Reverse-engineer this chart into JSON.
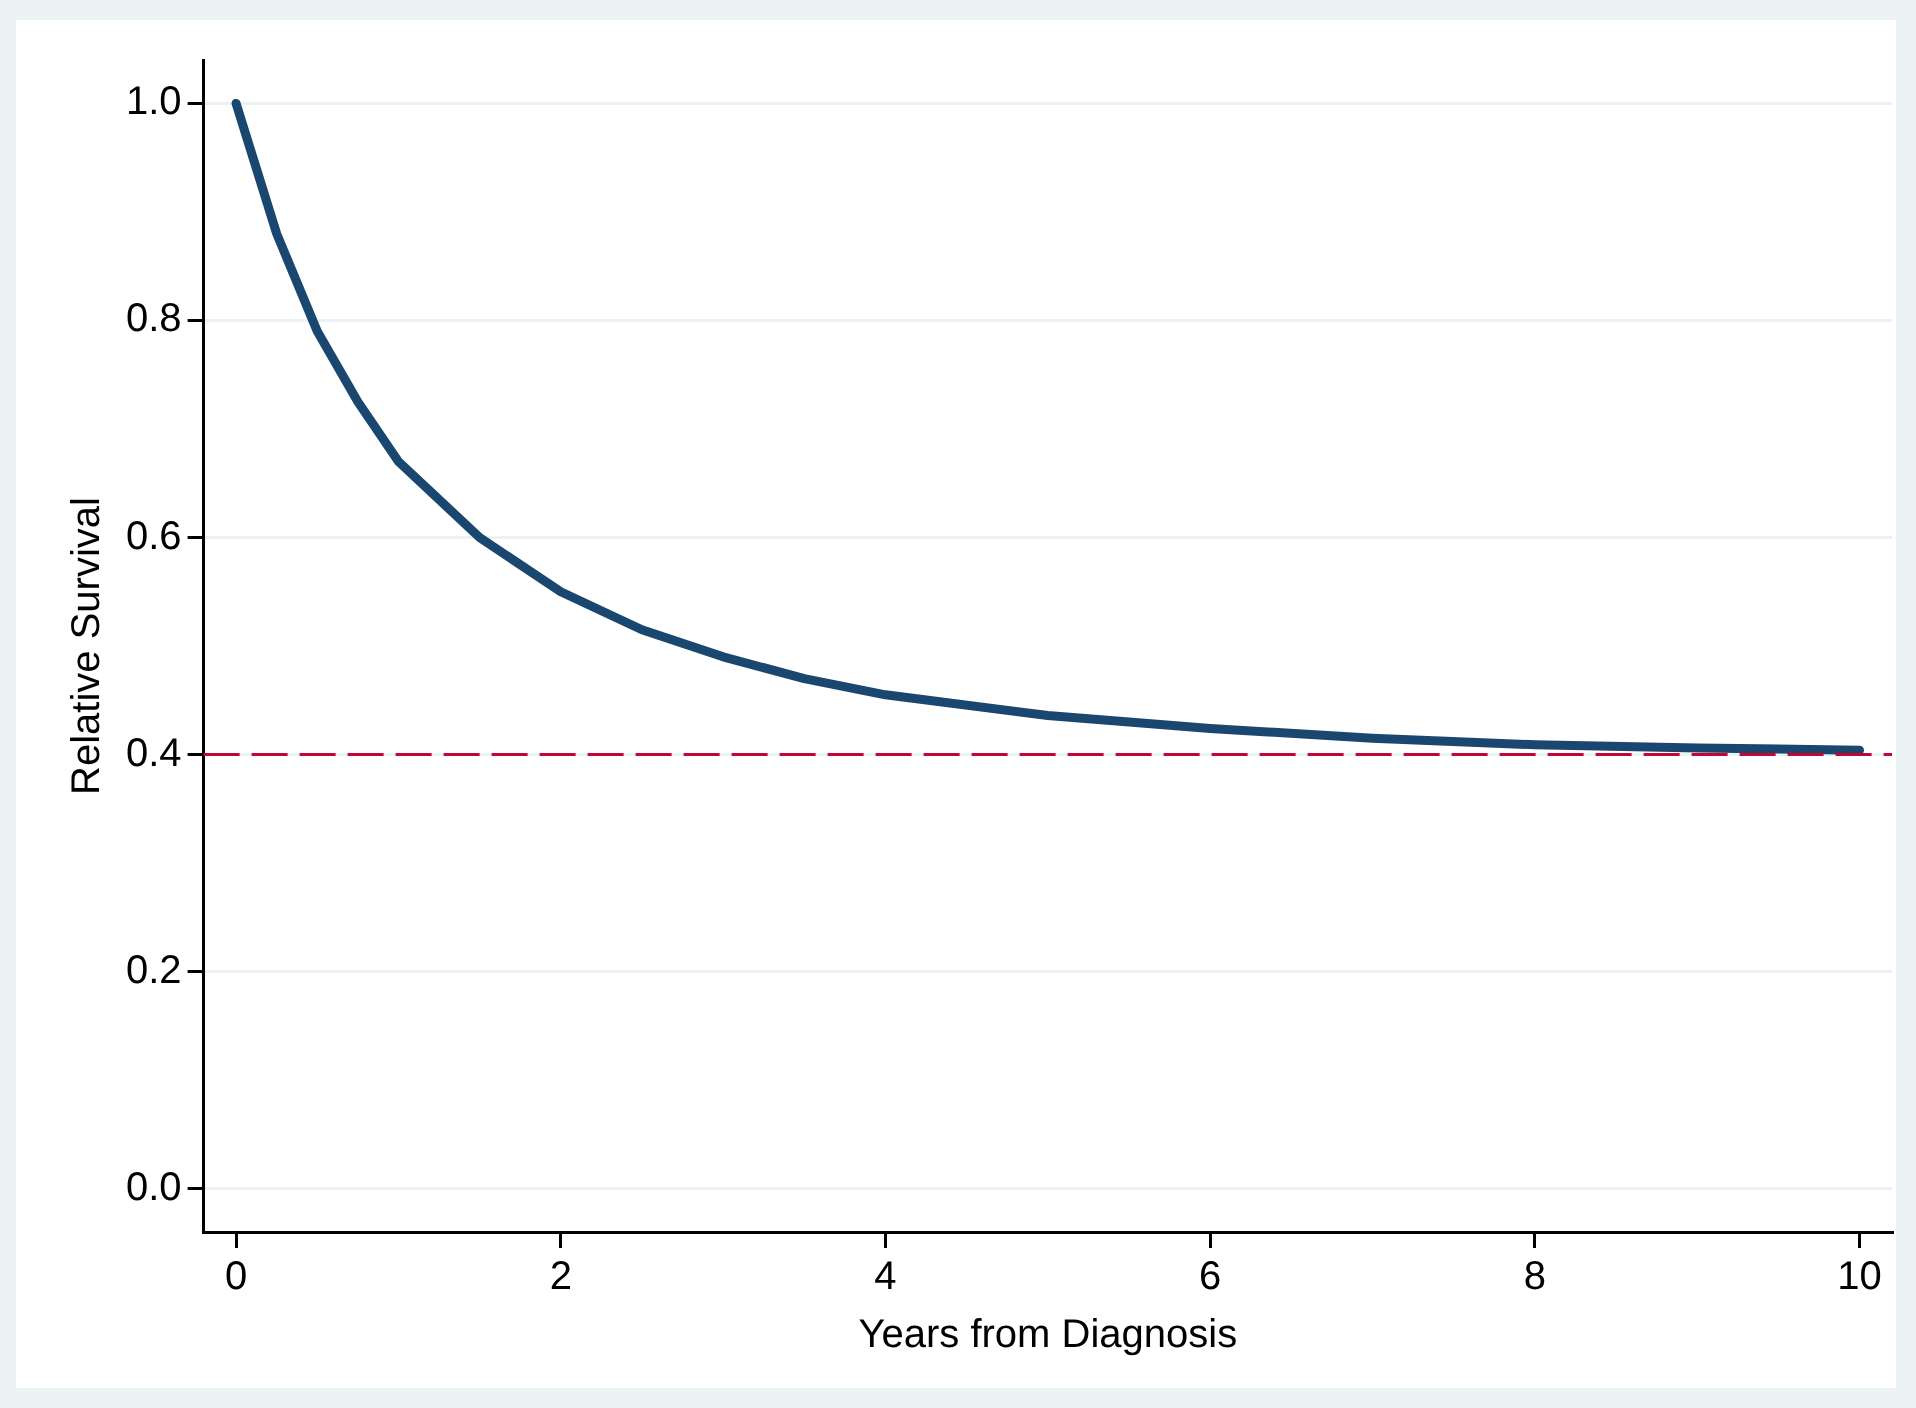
{
  "chart_data": {
    "type": "line",
    "xlabel": "Years from Diagnosis",
    "ylabel": "Relative Survival",
    "x": [
      0,
      0.25,
      0.5,
      0.75,
      1,
      1.5,
      2,
      2.5,
      3,
      3.5,
      4,
      5,
      6,
      7,
      8,
      9,
      10
    ],
    "series": [
      {
        "color": "#1a476f",
        "values": [
          1.0,
          0.88,
          0.79,
          0.725,
          0.67,
          0.6,
          0.55,
          0.515,
          0.49,
          0.47,
          0.455,
          0.436,
          0.424,
          0.415,
          0.409,
          0.406,
          0.404
        ]
      }
    ],
    "xlim": [
      -0.2,
      10.2
    ],
    "xticks": [
      0,
      2,
      4,
      6,
      8,
      10
    ],
    "ylim": [
      -0.04,
      1.04
    ],
    "yticks": [
      {
        "value": 0,
        "label": "0.0"
      },
      {
        "value": 0.2,
        "label": "0.2"
      },
      {
        "value": 0.4,
        "label": "0.4"
      },
      {
        "value": 0.6,
        "label": "0.6"
      },
      {
        "value": 0.8,
        "label": "0.8"
      },
      {
        "value": 1,
        "label": "1.0"
      }
    ],
    "ref_lines": [
      {
        "axis": "y",
        "value": 0.4,
        "color": "#c10534",
        "line_style": "dashed"
      }
    ],
    "grid": "y",
    "legend": false,
    "marker": "none",
    "line_style": "solid"
  }
}
